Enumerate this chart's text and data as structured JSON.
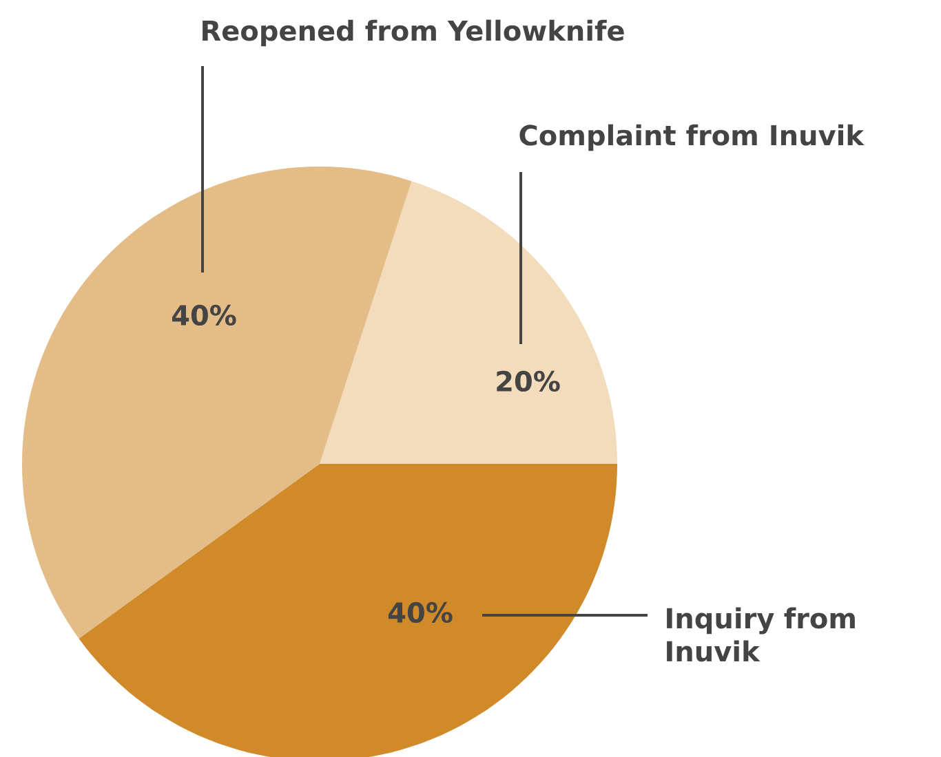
{
  "chart_data": {
    "type": "pie",
    "categories": [
      "Complaint from Inuvik",
      "Reopened from Yellowknife",
      "Inquiry from Inuvik"
    ],
    "values": [
      20,
      40,
      40
    ],
    "colors": [
      "#f2dcbc",
      "#e4bc87",
      "#d08a2a"
    ],
    "value_labels": [
      "20%",
      "40%",
      "40%"
    ]
  }
}
